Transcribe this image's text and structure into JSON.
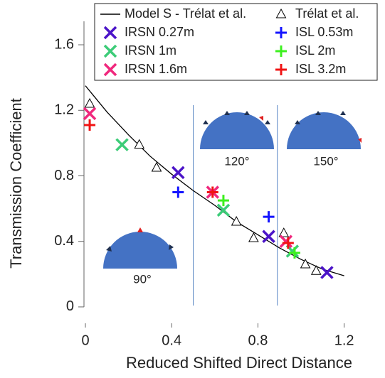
{
  "chart_data": {
    "type": "scatter",
    "xlabel": "Reduced Shifted Direct Distance",
    "ylabel": "Transmission Coefficient",
    "xlim": [
      0,
      1.32
    ],
    "ylim": [
      -0.1,
      1.83
    ],
    "xticks": [
      0,
      0.4,
      0.8,
      1.2
    ],
    "yticks": [
      0,
      0.4,
      0.8,
      1.2,
      1.6
    ],
    "dividers": [
      0.5,
      0.89
    ],
    "annotations": [
      "90°",
      "120°",
      "150°"
    ],
    "series": [
      {
        "name": "Model S - Trélat et al.",
        "color": "#000000",
        "marker": "line",
        "x": [
          0,
          0.1,
          0.2,
          0.3,
          0.4,
          0.5,
          0.6,
          0.7,
          0.8,
          0.9,
          1.0,
          1.1,
          1.2
        ],
        "values": [
          1.35,
          1.19,
          1.05,
          0.92,
          0.81,
          0.71,
          0.62,
          0.52,
          0.44,
          0.36,
          0.29,
          0.23,
          0.19
        ]
      },
      {
        "name": "Trélat et al.",
        "color": "#000000",
        "marker": "triangle",
        "x": [
          0.02,
          0.25,
          0.33,
          0.7,
          0.78,
          0.92,
          1.02,
          1.07
        ],
        "values": [
          1.24,
          0.99,
          0.85,
          0.52,
          0.42,
          0.45,
          0.26,
          0.22
        ]
      },
      {
        "name": "IRSN 0.27m",
        "color": "#4b14c8",
        "marker": "x",
        "x": [
          0.43,
          0.85,
          1.12
        ],
        "values": [
          0.82,
          0.43,
          0.21
        ]
      },
      {
        "name": "ISL 0.53m",
        "color": "#1414ff",
        "marker": "plus",
        "x": [
          0.43,
          0.85
        ],
        "values": [
          0.7,
          0.55
        ]
      },
      {
        "name": "IRSN 1m",
        "color": "#3ccc78",
        "marker": "x",
        "x": [
          0.17,
          0.64,
          0.96
        ],
        "values": [
          0.99,
          0.59,
          0.34
        ]
      },
      {
        "name": "ISL 2m",
        "color": "#3cf01e",
        "marker": "plus",
        "x": [
          0.64,
          0.97
        ],
        "values": [
          0.65,
          0.33
        ]
      },
      {
        "name": "IRSN 1.6m",
        "color": "#f0287d",
        "marker": "x",
        "x": [
          0.02,
          0.59,
          0.93
        ],
        "values": [
          1.18,
          0.7,
          0.4
        ]
      },
      {
        "name": "ISL 3.2m",
        "color": "#f01414",
        "marker": "plus",
        "x": [
          0.02,
          0.59,
          0.94
        ],
        "values": [
          1.11,
          0.7,
          0.39
        ]
      }
    ]
  }
}
